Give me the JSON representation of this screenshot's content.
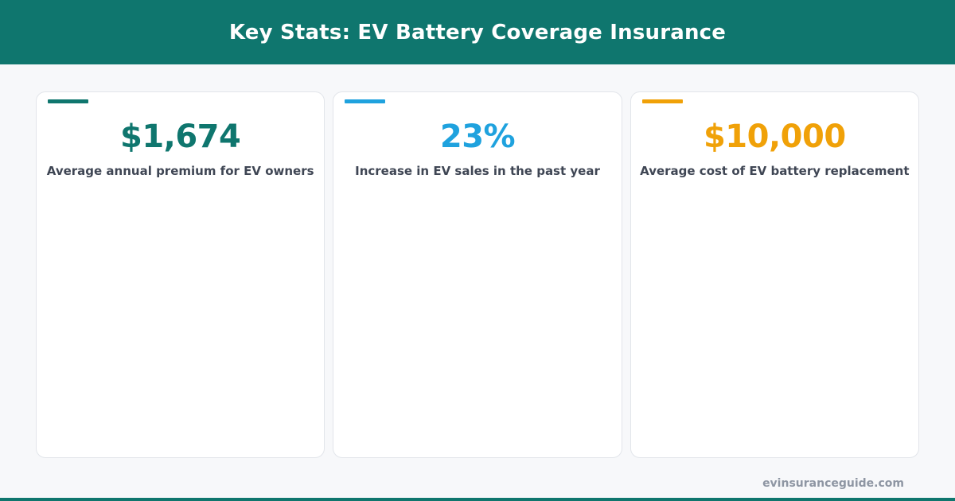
{
  "header": {
    "title": "Key Stats: EV Battery Coverage Insurance"
  },
  "colors": {
    "brand": "#0f766e",
    "blue": "#1fa2de",
    "amber": "#f0a108"
  },
  "stats": [
    {
      "value": "$1,674",
      "label": "Average annual premium for EV owners",
      "accent_color": "#0f766e"
    },
    {
      "value": "23%",
      "label": "Increase in EV sales in the past year",
      "accent_color": "#1fa2de"
    },
    {
      "value": "$10,000",
      "label": "Average cost of EV battery replacement",
      "accent_color": "#f0a108"
    }
  ],
  "footer": {
    "domain": "evinsuranceguide.com"
  }
}
